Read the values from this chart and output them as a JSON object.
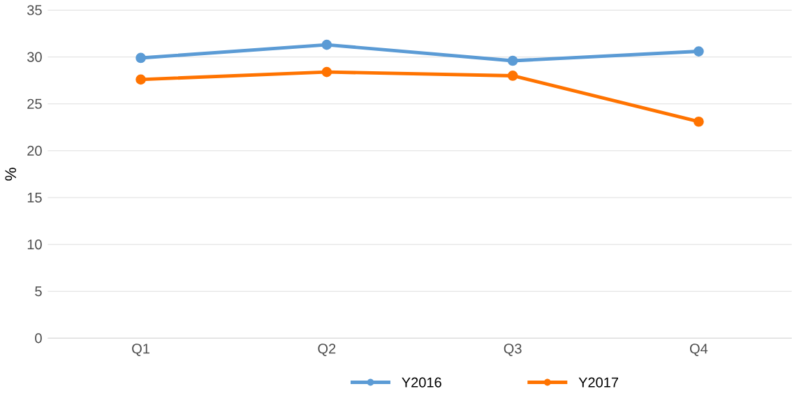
{
  "chart_data": {
    "type": "line",
    "ylabel": "%",
    "categories": [
      "Q1",
      "Q2",
      "Q3",
      "Q4"
    ],
    "series": [
      {
        "name": "Y2016",
        "color": "#5b9bd5",
        "values": [
          29.9,
          31.3,
          29.6,
          30.6
        ]
      },
      {
        "name": "Y2017",
        "color": "#ff7300",
        "values": [
          27.6,
          28.4,
          28.0,
          23.1
        ]
      }
    ],
    "ylim": [
      0,
      35
    ],
    "yticks": [
      0,
      5,
      10,
      15,
      20,
      25,
      30,
      35
    ],
    "grid": "y",
    "legend": "bottom",
    "marker": "circle",
    "line_style": "solid"
  }
}
